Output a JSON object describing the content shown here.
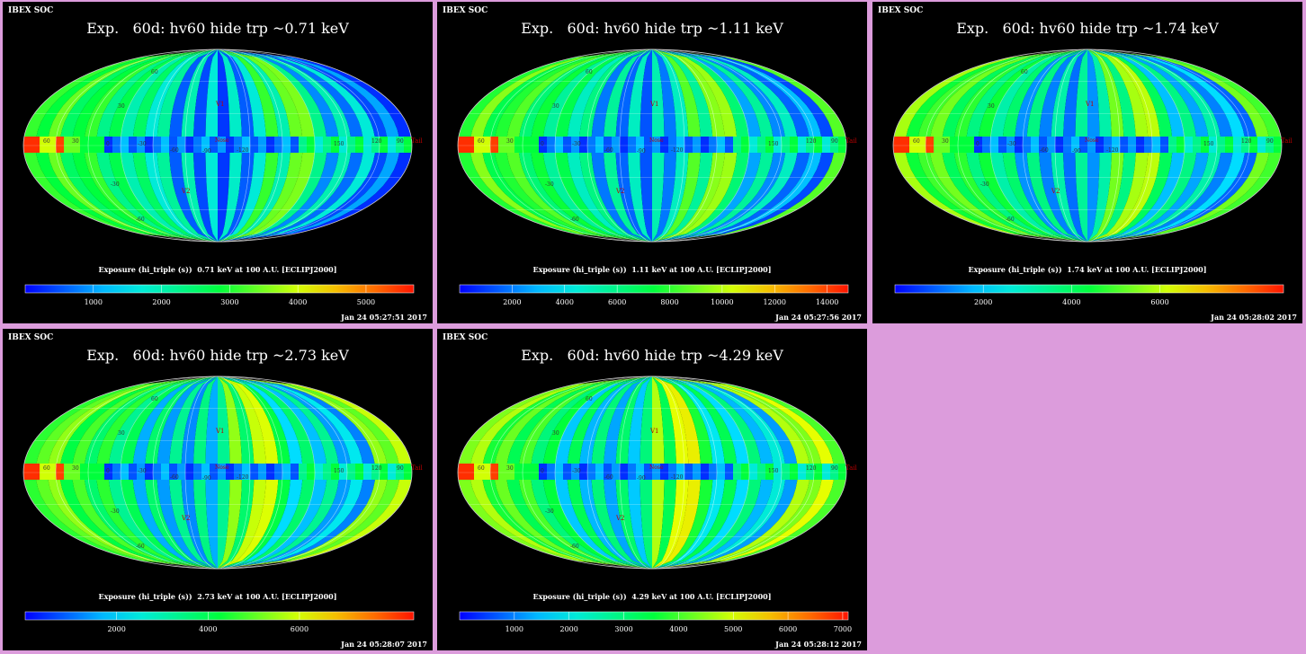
{
  "header_label": "IBEX SOC",
  "panels": [
    {
      "title": "Exp.   60d: hv60 hide trp ~0.71 keV",
      "caption": "Exposure (hi_triple (s))  0.71 keV at 100 A.U. [ECLIPJ2000]",
      "date": "Jan 24 05:27:51 2017",
      "colorbar": {
        "min": 0,
        "max": 5700,
        "ticks": [
          "1000",
          "2000",
          "3000",
          "4000",
          "5000"
        ],
        "tick_values": [
          1000,
          2000,
          3000,
          4000,
          5000
        ]
      }
    },
    {
      "title": "Exp.   60d: hv60 hide trp ~1.11 keV",
      "caption": "Exposure (hi_triple (s))  1.11 keV at 100 A.U. [ECLIPJ2000]",
      "date": "Jan 24 05:27:56 2017",
      "colorbar": {
        "min": 0,
        "max": 14800,
        "ticks": [
          "2000",
          "4000",
          "6000",
          "8000",
          "10000",
          "12000",
          "14000"
        ],
        "tick_values": [
          2000,
          4000,
          6000,
          8000,
          10000,
          12000,
          14000
        ]
      }
    },
    {
      "title": "Exp.   60d: hv60 hide trp ~1.74 keV",
      "caption": "Exposure (hi_triple (s))  1.74 keV at 100 A.U. [ECLIPJ2000]",
      "date": "Jan 24 05:28:02 2017",
      "colorbar": {
        "min": 0,
        "max": 8800,
        "ticks": [
          "2000",
          "4000",
          "6000"
        ],
        "tick_values": [
          2000,
          4000,
          6000
        ]
      }
    },
    {
      "title": "Exp.   60d: hv60 hide trp ~2.73 keV",
      "caption": "Exposure (hi_triple (s))  2.73 keV at 100 A.U. [ECLIPJ2000]",
      "date": "Jan 24 05:28:07 2017",
      "colorbar": {
        "min": 0,
        "max": 8500,
        "ticks": [
          "2000",
          "4000",
          "6000"
        ],
        "tick_values": [
          2000,
          4000,
          6000
        ]
      }
    },
    {
      "title": "Exp.   60d: hv60 hide trp ~4.29 keV",
      "caption": "Exposure (hi_triple (s))  4.29 keV at 100 A.U. [ECLIPJ2000]",
      "date": "Jan 24 05:28:12 2017",
      "colorbar": {
        "min": 0,
        "max": 7100,
        "ticks": [
          "1000",
          "2000",
          "3000",
          "4000",
          "5000",
          "6000",
          "7000"
        ],
        "tick_values": [
          1000,
          2000,
          3000,
          4000,
          5000,
          6000,
          7000
        ]
      }
    }
  ],
  "map_labels": {
    "v1": "V1",
    "v2": "V2",
    "nose": "Nose",
    "tail": "Tail",
    "lat": [
      "60",
      "30",
      "0",
      "-30",
      "-60"
    ],
    "lon": [
      "60",
      "30",
      "0",
      "-30",
      "-60",
      "-90",
      "-120",
      "150",
      "120",
      "90"
    ]
  },
  "colors": {
    "low": "#0000ff",
    "mid": "#00ff00",
    "high": "#ff0000",
    "background": "#dc9cdc"
  }
}
